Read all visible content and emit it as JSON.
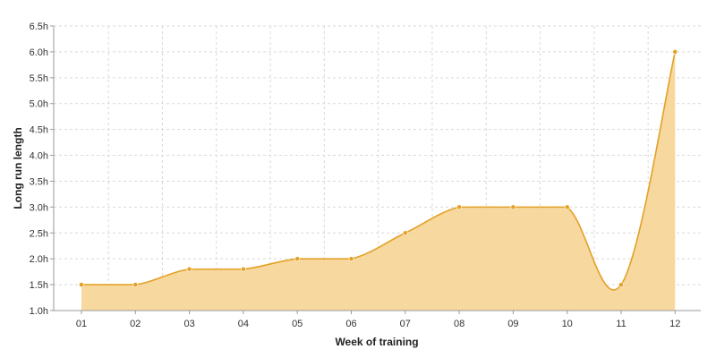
{
  "chart_data": {
    "type": "area",
    "x": [
      "01",
      "02",
      "03",
      "04",
      "05",
      "06",
      "07",
      "08",
      "09",
      "10",
      "11",
      "12"
    ],
    "series": [
      {
        "values": [
          1.5,
          1.5,
          1.8,
          1.8,
          2.0,
          2.0,
          2.5,
          3.0,
          3.0,
          3.0,
          1.5,
          6.0
        ]
      }
    ],
    "xlabel": "Week of training",
    "ylabel": "Long run length",
    "ylim": [
      1.0,
      6.5
    ],
    "yticks": [
      "1.0h",
      "1.5h",
      "2.0h",
      "2.5h",
      "3.0h",
      "3.5h",
      "4.0h",
      "4.5h",
      "5.0h",
      "5.5h",
      "6.0h",
      "6.5h"
    ],
    "grid": true,
    "smooth": true,
    "colors": {
      "line": "#e3a126",
      "fill": "#f7d69a",
      "grid": "#d9d9d9",
      "axis": "#999999"
    }
  }
}
